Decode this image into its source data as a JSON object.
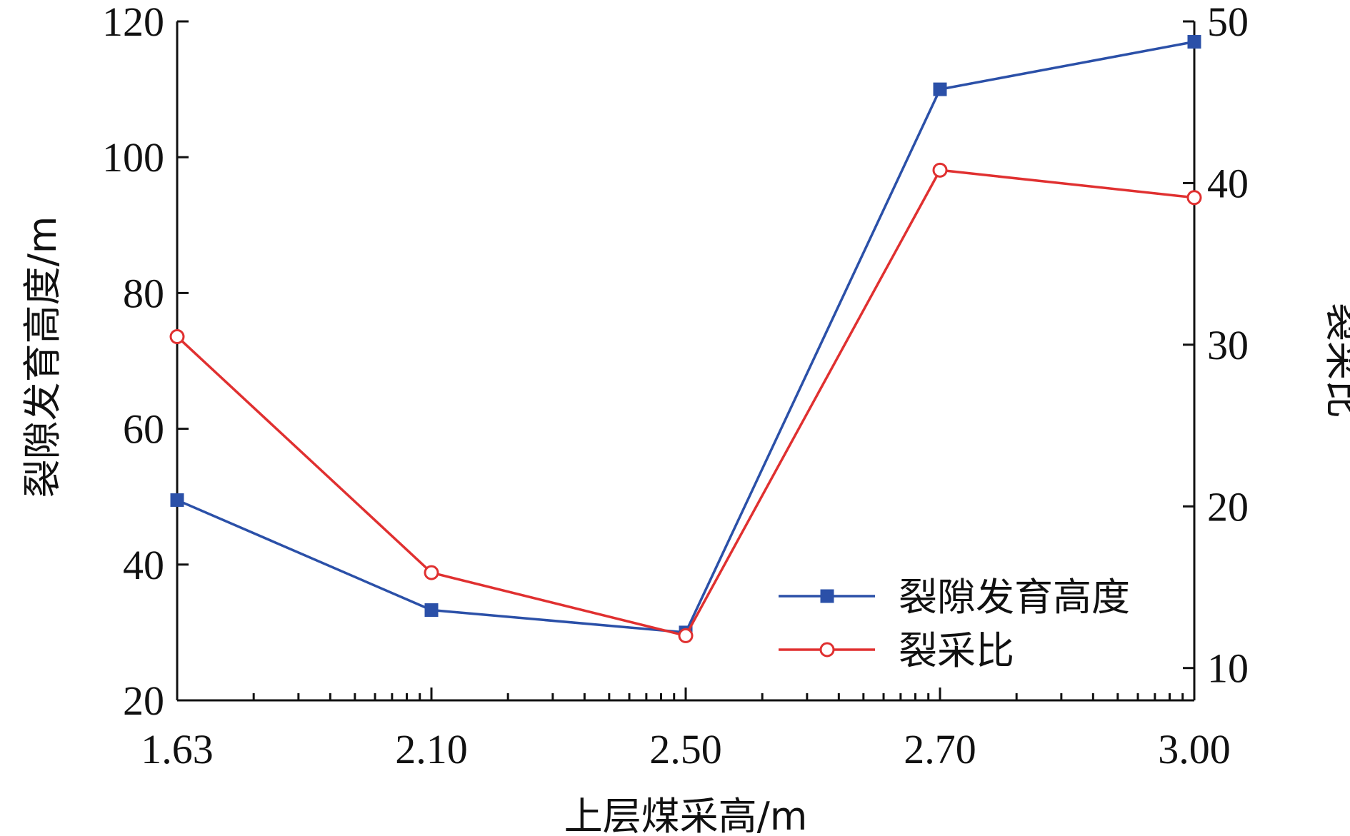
{
  "chart_data": {
    "type": "line",
    "categories": [
      "1.63",
      "2.10",
      "2.50",
      "2.70",
      "3.00"
    ],
    "xlabel": "上层煤采高/m",
    "ylabel": "裂隙发育高度/m",
    "y2label": "裂采比",
    "ylim": [
      20,
      120
    ],
    "y2lim": [
      8,
      50
    ],
    "yticks": [
      "20",
      "40",
      "60",
      "80",
      "100",
      "120"
    ],
    "y2ticks": [
      "10",
      "20",
      "30",
      "40",
      "50"
    ],
    "series": [
      {
        "name": "裂隙发育高度",
        "axis": "left",
        "color": "#2b50a8",
        "marker": "square-filled",
        "values": [
          49.5,
          33.3,
          30.0,
          110.0,
          117.0
        ]
      },
      {
        "name": "裂采比",
        "axis": "right",
        "color": "#e03030",
        "marker": "circle-open",
        "values": [
          30.5,
          15.9,
          12.0,
          40.8,
          39.1
        ]
      }
    ],
    "legend": "lower-right",
    "grid": false
  }
}
